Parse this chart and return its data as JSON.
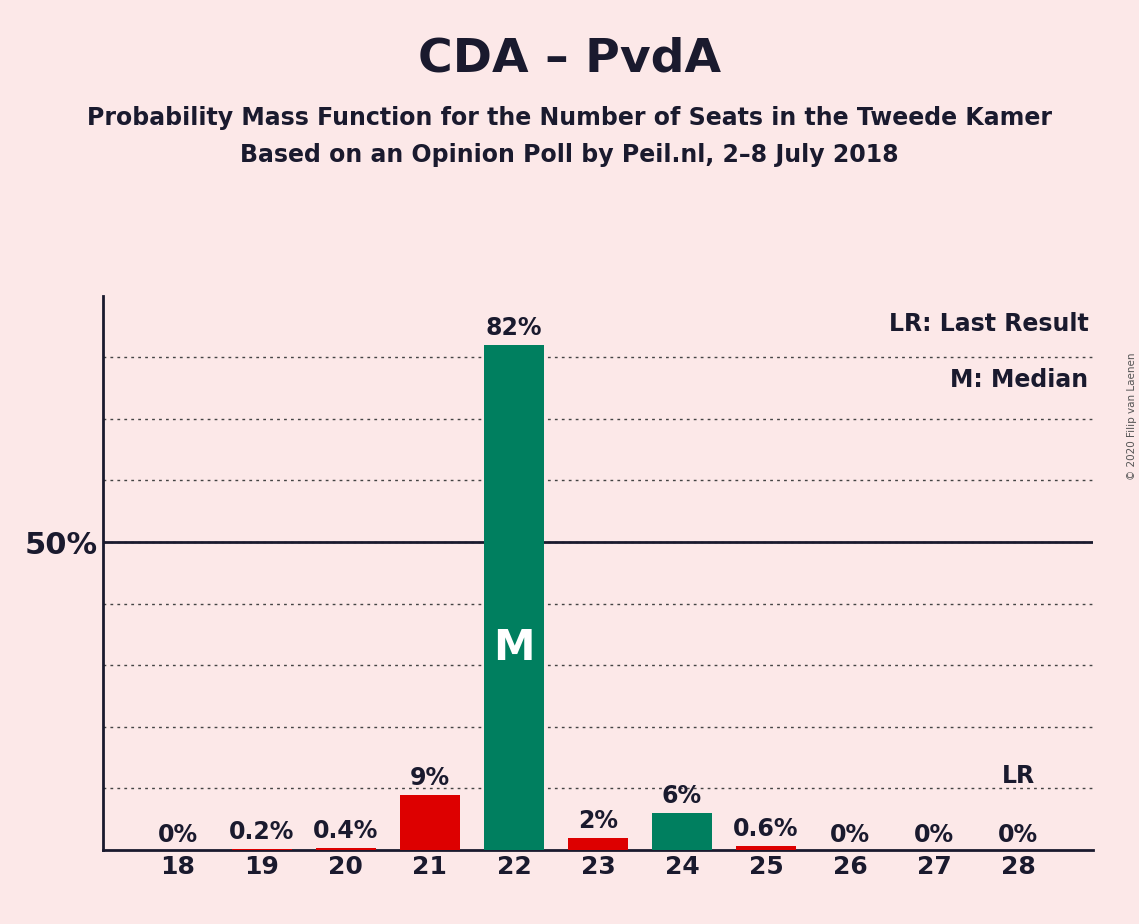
{
  "title": "CDA – PvdA",
  "subtitle1": "Probability Mass Function for the Number of Seats in the Tweede Kamer",
  "subtitle2": "Based on an Opinion Poll by Peil.nl, 2–8 July 2018",
  "copyright": "© 2020 Filip van Laenen",
  "categories": [
    18,
    19,
    20,
    21,
    22,
    23,
    24,
    25,
    26,
    27,
    28
  ],
  "values": [
    0.0,
    0.2,
    0.4,
    9.0,
    82.0,
    2.0,
    6.0,
    0.6,
    0.0,
    0.0,
    0.0
  ],
  "bar_colors": [
    "#dd0000",
    "#dd0000",
    "#dd0000",
    "#dd0000",
    "#007f5f",
    "#dd0000",
    "#007f5f",
    "#dd0000",
    "#dd0000",
    "#dd0000",
    "#dd0000"
  ],
  "labels": [
    "0%",
    "0.2%",
    "0.4%",
    "9%",
    "82%",
    "2%",
    "6%",
    "0.6%",
    "0%",
    "0%",
    "0%"
  ],
  "median_bar_idx": 4,
  "median_label": "M",
  "lr_bar_idx": 10,
  "lr_label": "LR",
  "legend_lr": "LR: Last Result",
  "legend_m": "M: Median",
  "ylim": [
    0,
    90
  ],
  "yticks": [
    10,
    20,
    30,
    40,
    50,
    60,
    70,
    80
  ],
  "ytick_labels_show": [
    50
  ],
  "background_color": "#fce8e8",
  "bar_width": 0.72,
  "title_fontsize": 34,
  "subtitle_fontsize": 17,
  "axis_label_fontsize": 18,
  "bar_label_fontsize": 17,
  "legend_fontsize": 17,
  "ylabel_50_fontsize": 22,
  "m_label_fontsize": 30,
  "lr_label_fontsize": 17
}
